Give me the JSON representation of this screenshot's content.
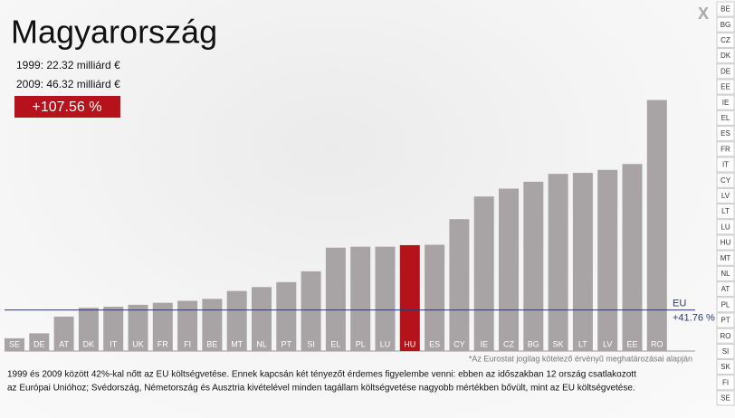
{
  "header": {
    "title": "Magyarország",
    "line1": "1999: 22.32 milliárd €",
    "line2": "2009: 46.32 milliárd €",
    "change": "+107.56 %"
  },
  "close": "X",
  "chart_data": {
    "type": "bar",
    "categories": [
      "SE",
      "DE",
      "AT",
      "DK",
      "IT",
      "UK",
      "FR",
      "FI",
      "BE",
      "MT",
      "NL",
      "PT",
      "SI",
      "EL",
      "PL",
      "LU",
      "HU",
      "ES",
      "CY",
      "IE",
      "CZ",
      "BG",
      "SK",
      "LT",
      "LV",
      "EE",
      "RO"
    ],
    "values": [
      13,
      18,
      35,
      44,
      45,
      47,
      49,
      51,
      53,
      61,
      65,
      70,
      81,
      105,
      106,
      106,
      107.56,
      108,
      134,
      157,
      165,
      172,
      180,
      181,
      184,
      190,
      255
    ],
    "color": "#a8a4a5",
    "highlight": {
      "category": "HU",
      "color": "#b5121b"
    },
    "reference": {
      "name": "EU",
      "value": 41.76,
      "label": "+41.76 %"
    }
  },
  "footnote": "*Az Eurostat jogilag kötelező érvényű meghatározásai alapján",
  "description": [
    "1999 és 2009 között 42%-kal nőtt az EU költségvetése. Ennek kapcsán két tényezőt érdemes figyelembe venni: ebben az időszakban 12 ország csatlakozott",
    "az Európai Unióhoz; Svédország, Németország és Ausztria kivételével minden tagállam költségvetése nagyobb mértékben bővült, mint az EU költségvetése."
  ],
  "country_menu": [
    "BE",
    "BG",
    "CZ",
    "DK",
    "DE",
    "EE",
    "IE",
    "EL",
    "ES",
    "FR",
    "IT",
    "CY",
    "LV",
    "LT",
    "LU",
    "HU",
    "MT",
    "NL",
    "AT",
    "PL",
    "PT",
    "RO",
    "SI",
    "SK",
    "FI",
    "SE"
  ]
}
